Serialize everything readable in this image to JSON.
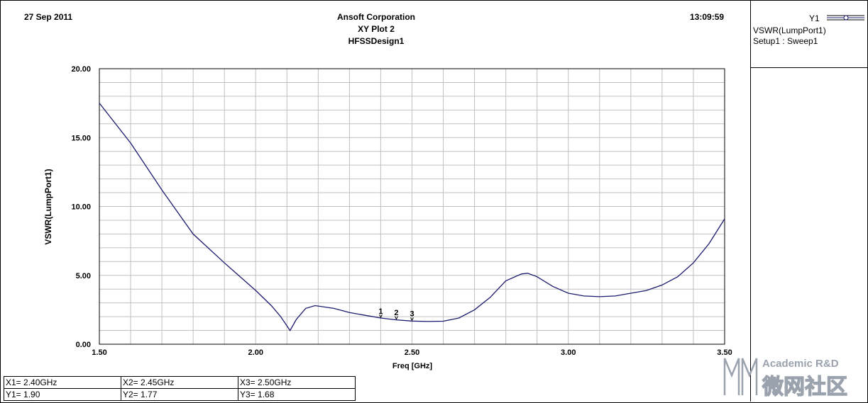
{
  "header": {
    "date": "27 Sep 2011",
    "company": "Ansoft Corporation",
    "plot_name": "XY Plot 2",
    "design": "HFSSDesign1",
    "time": "13:09:59"
  },
  "legend": {
    "trace_id": "Y1",
    "trace_name": "VSWR(LumpPort1)",
    "setup": "Setup1 : Sweep1"
  },
  "markers_table": [
    {
      "x": "X1= 2.40GHz",
      "y": "Y1= 1.90"
    },
    {
      "x": "X2= 2.45GHz",
      "y": "Y2= 1.77"
    },
    {
      "x": "X3= 2.50GHz",
      "y": "Y3= 1.68"
    }
  ],
  "watermark": {
    "text1": "Academic R&D",
    "text2": "微网社区"
  },
  "colors": {
    "trace": "#1a1a6e",
    "grid": "#c0c0c0"
  },
  "chart_data": {
    "type": "line",
    "xlabel": "Freq [GHz]",
    "ylabel": "VSWR(LumpPort1)",
    "xlim": [
      1.5,
      3.5
    ],
    "ylim": [
      0,
      20
    ],
    "x_ticks": [
      "1.50",
      "2.00",
      "2.50",
      "3.00",
      "3.50"
    ],
    "y_ticks": [
      "0.00",
      "5.00",
      "10.00",
      "15.00",
      "20.00"
    ],
    "grid": true,
    "series": [
      {
        "name": "VSWR(LumpPort1)",
        "x": [
          1.5,
          1.6,
          1.7,
          1.8,
          1.9,
          2.0,
          2.05,
          2.08,
          2.11,
          2.13,
          2.16,
          2.19,
          2.25,
          2.3,
          2.35,
          2.4,
          2.45,
          2.5,
          2.55,
          2.6,
          2.65,
          2.7,
          2.75,
          2.8,
          2.85,
          2.87,
          2.9,
          2.95,
          3.0,
          3.05,
          3.1,
          3.15,
          3.2,
          3.25,
          3.3,
          3.35,
          3.4,
          3.45,
          3.5
        ],
        "y": [
          17.5,
          14.6,
          11.2,
          8.0,
          5.9,
          3.9,
          2.8,
          2.0,
          1.0,
          1.8,
          2.6,
          2.8,
          2.6,
          2.3,
          2.1,
          1.9,
          1.77,
          1.68,
          1.65,
          1.67,
          1.9,
          2.5,
          3.4,
          4.6,
          5.1,
          5.15,
          4.9,
          4.2,
          3.7,
          3.5,
          3.45,
          3.5,
          3.7,
          3.9,
          4.3,
          4.9,
          5.9,
          7.3,
          9.1
        ]
      }
    ],
    "markers": [
      {
        "label": "1",
        "x": 2.4,
        "y": 1.9
      },
      {
        "label": "2",
        "x": 2.45,
        "y": 1.77
      },
      {
        "label": "3",
        "x": 2.5,
        "y": 1.68
      }
    ]
  }
}
